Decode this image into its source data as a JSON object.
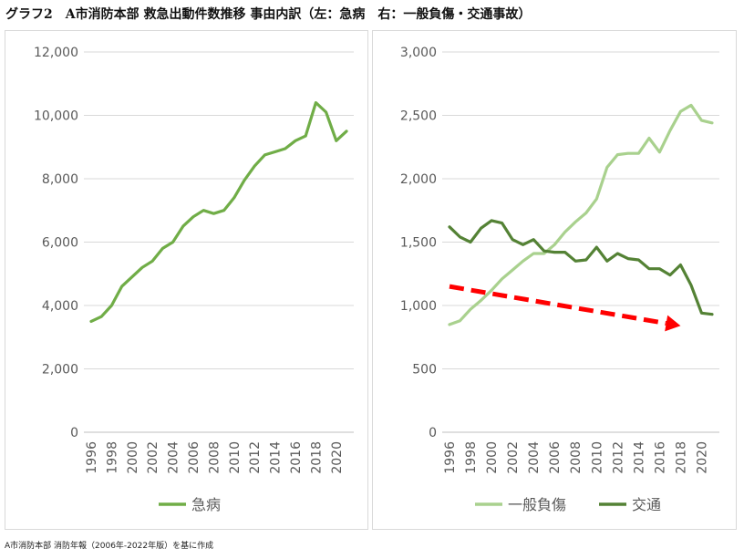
{
  "title": "グラフ2　A市消防本部 救急出動件数推移 事由内訳（左：急病　右：一般負傷・交通事故）",
  "source": "A市消防本部 消防年報（2006年-2022年版）を基に作成",
  "chart_data": [
    {
      "type": "line",
      "title": "",
      "ylim": [
        0,
        12000
      ],
      "yticks": [
        "0",
        "2,000",
        "4,000",
        "6,000",
        "8,000",
        "10,000",
        "12,000"
      ],
      "ytick_values": [
        0,
        2000,
        4000,
        6000,
        8000,
        10000,
        12000
      ],
      "xtick_labels": [
        "1996",
        "1998",
        "2000",
        "2002",
        "2004",
        "2006",
        "2008",
        "2010",
        "2012",
        "2014",
        "2016",
        "2018",
        "2020"
      ],
      "x": [
        1996,
        1997,
        1998,
        1999,
        2000,
        2001,
        2002,
        2003,
        2004,
        2005,
        2006,
        2007,
        2008,
        2009,
        2010,
        2011,
        2012,
        2013,
        2014,
        2015,
        2016,
        2017,
        2018,
        2019,
        2020,
        2021
      ],
      "series": [
        {
          "name": "急病",
          "color": "#70ad47",
          "values": [
            3500,
            3650,
            4000,
            4600,
            4900,
            5200,
            5400,
            5800,
            6000,
            6500,
            6800,
            7000,
            6900,
            7000,
            7400,
            7950,
            8400,
            8750,
            8850,
            8950,
            9200,
            9350,
            10400,
            10100,
            9200,
            9500
          ]
        }
      ],
      "legend": "bottom",
      "grid": true
    },
    {
      "type": "line",
      "title": "",
      "ylim": [
        0,
        3000
      ],
      "yticks": [
        "0",
        "500",
        "1,000",
        "1,500",
        "2,000",
        "2,500",
        "3,000"
      ],
      "ytick_values": [
        0,
        500,
        1000,
        1500,
        2000,
        2500,
        3000
      ],
      "xtick_labels": [
        "1996",
        "1998",
        "2000",
        "2002",
        "2004",
        "2006",
        "2008",
        "2010",
        "2012",
        "2014",
        "2016",
        "2018",
        "2020"
      ],
      "x": [
        1996,
        1997,
        1998,
        1999,
        2000,
        2001,
        2002,
        2003,
        2004,
        2005,
        2006,
        2007,
        2008,
        2009,
        2010,
        2011,
        2012,
        2013,
        2014,
        2015,
        2016,
        2017,
        2018,
        2019,
        2020,
        2021
      ],
      "series": [
        {
          "name": "一般負傷",
          "color": "#a9d18e",
          "values": [
            850,
            880,
            970,
            1040,
            1120,
            1210,
            1280,
            1350,
            1410,
            1410,
            1480,
            1580,
            1660,
            1730,
            1840,
            2090,
            2190,
            2200,
            2200,
            2320,
            2210,
            2380,
            2530,
            2580,
            2460,
            2440
          ]
        },
        {
          "name": "交通",
          "color": "#548235",
          "values": [
            1620,
            1540,
            1500,
            1610,
            1670,
            1650,
            1520,
            1480,
            1520,
            1430,
            1420,
            1420,
            1350,
            1360,
            1460,
            1350,
            1410,
            1370,
            1360,
            1290,
            1290,
            1240,
            1320,
            1160,
            940,
            930
          ]
        }
      ],
      "annotation": {
        "type": "trend-arrow",
        "color": "#ff0000",
        "from": [
          1996,
          1150
        ],
        "to": [
          2018,
          840
        ]
      },
      "legend": "bottom",
      "grid": true
    }
  ]
}
